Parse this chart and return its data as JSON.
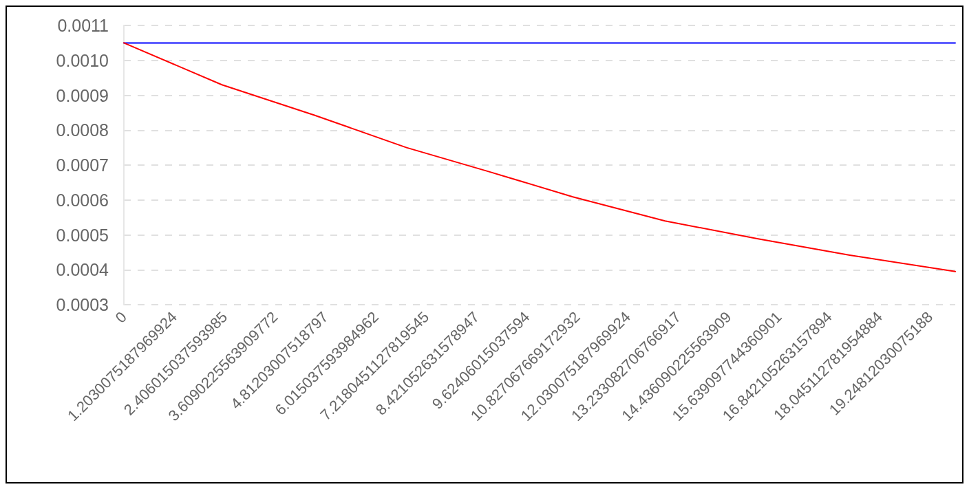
{
  "chart_data": {
    "type": "line",
    "xlim": [
      0,
      19.85
    ],
    "xticks": [
      0,
      1.2030075187969924,
      2.406015037593985,
      {
        "value": 3.609022556390977,
        "label": "3.6090225563909772"
      },
      4.81203007518797,
      6.015037593984962,
      {
        "value": 7.218045112781955,
        "label": "7.2180451127819545"
      },
      8.421052631578947,
      9.62406015037594,
      10.827067669172932,
      12.030075187969924,
      13.233082706766917,
      14.436090225563909,
      15.639097744360901,
      16.842105263157894,
      18.045112781954884,
      19.24812030075188
    ],
    "ylim": [
      0.0003,
      0.0011
    ],
    "yticks": [
      {
        "value": 0.0003,
        "label": "0.0003"
      },
      {
        "value": 0.0004,
        "label": "0.0004"
      },
      {
        "value": 0.0005,
        "label": "0.0005"
      },
      {
        "value": 0.0006,
        "label": "0.0006"
      },
      {
        "value": 0.0007,
        "label": "0.0007"
      },
      {
        "value": 0.0008,
        "label": "0.0008"
      },
      {
        "value": 0.0009,
        "label": "0.0009"
      },
      {
        "value": 0.001,
        "label": "0.0010"
      },
      {
        "value": 0.0011,
        "label": "0.0011"
      }
    ],
    "grid": "y",
    "marker": "none",
    "line_style": "solid",
    "series": [
      {
        "color": "#0000ff",
        "x": [
          0,
          19.85
        ],
        "values": [
          0.00105,
          0.00105
        ]
      },
      {
        "color": "#ff0000",
        "x": [
          0,
          2.34,
          4.55,
          6.75,
          8.72,
          10.72,
          12.92,
          15.12,
          17.33,
          19.85
        ],
        "values": [
          0.00105,
          0.00093,
          0.000843,
          0.00075,
          0.000681,
          0.000609,
          0.00054,
          0.000489,
          0.000442,
          0.000395
        ]
      }
    ]
  }
}
